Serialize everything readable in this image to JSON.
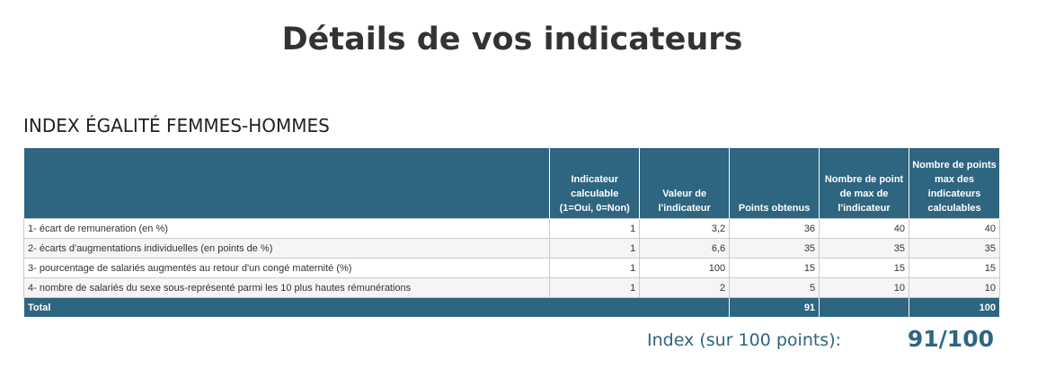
{
  "header": {
    "title": "Détails de vos indicateurs"
  },
  "section": {
    "title": "INDEX ÉGALITÉ FEMMES-HOMMES"
  },
  "table": {
    "columns": [
      "",
      "Indicateur calculable (1=Oui, 0=Non)",
      "Valeur de l'indicateur",
      "Points obtenus",
      "Nombre de point de max de l'indicateur",
      "Nombre de points max des indicateurs calculables"
    ],
    "rows": [
      [
        "1- écart de remuneration (en %)",
        1,
        "3,2",
        36,
        40,
        40
      ],
      [
        "2- écarts d'augmentations individuelles (en points de %)",
        1,
        "6,6",
        35,
        35,
        35
      ],
      [
        "3- pourcentage de salariés augmentés au retour d'un congé maternité (%)",
        1,
        100,
        15,
        15,
        15
      ],
      [
        "4- nombre de salariés du sexe sous-représenté parmi les 10 plus hautes rémunérations",
        1,
        2,
        5,
        10,
        10
      ]
    ],
    "total": {
      "label": "Total",
      "points": 91,
      "max": 100
    }
  },
  "index": {
    "label": "Index (sur 100 points):",
    "value": "91/100"
  }
}
